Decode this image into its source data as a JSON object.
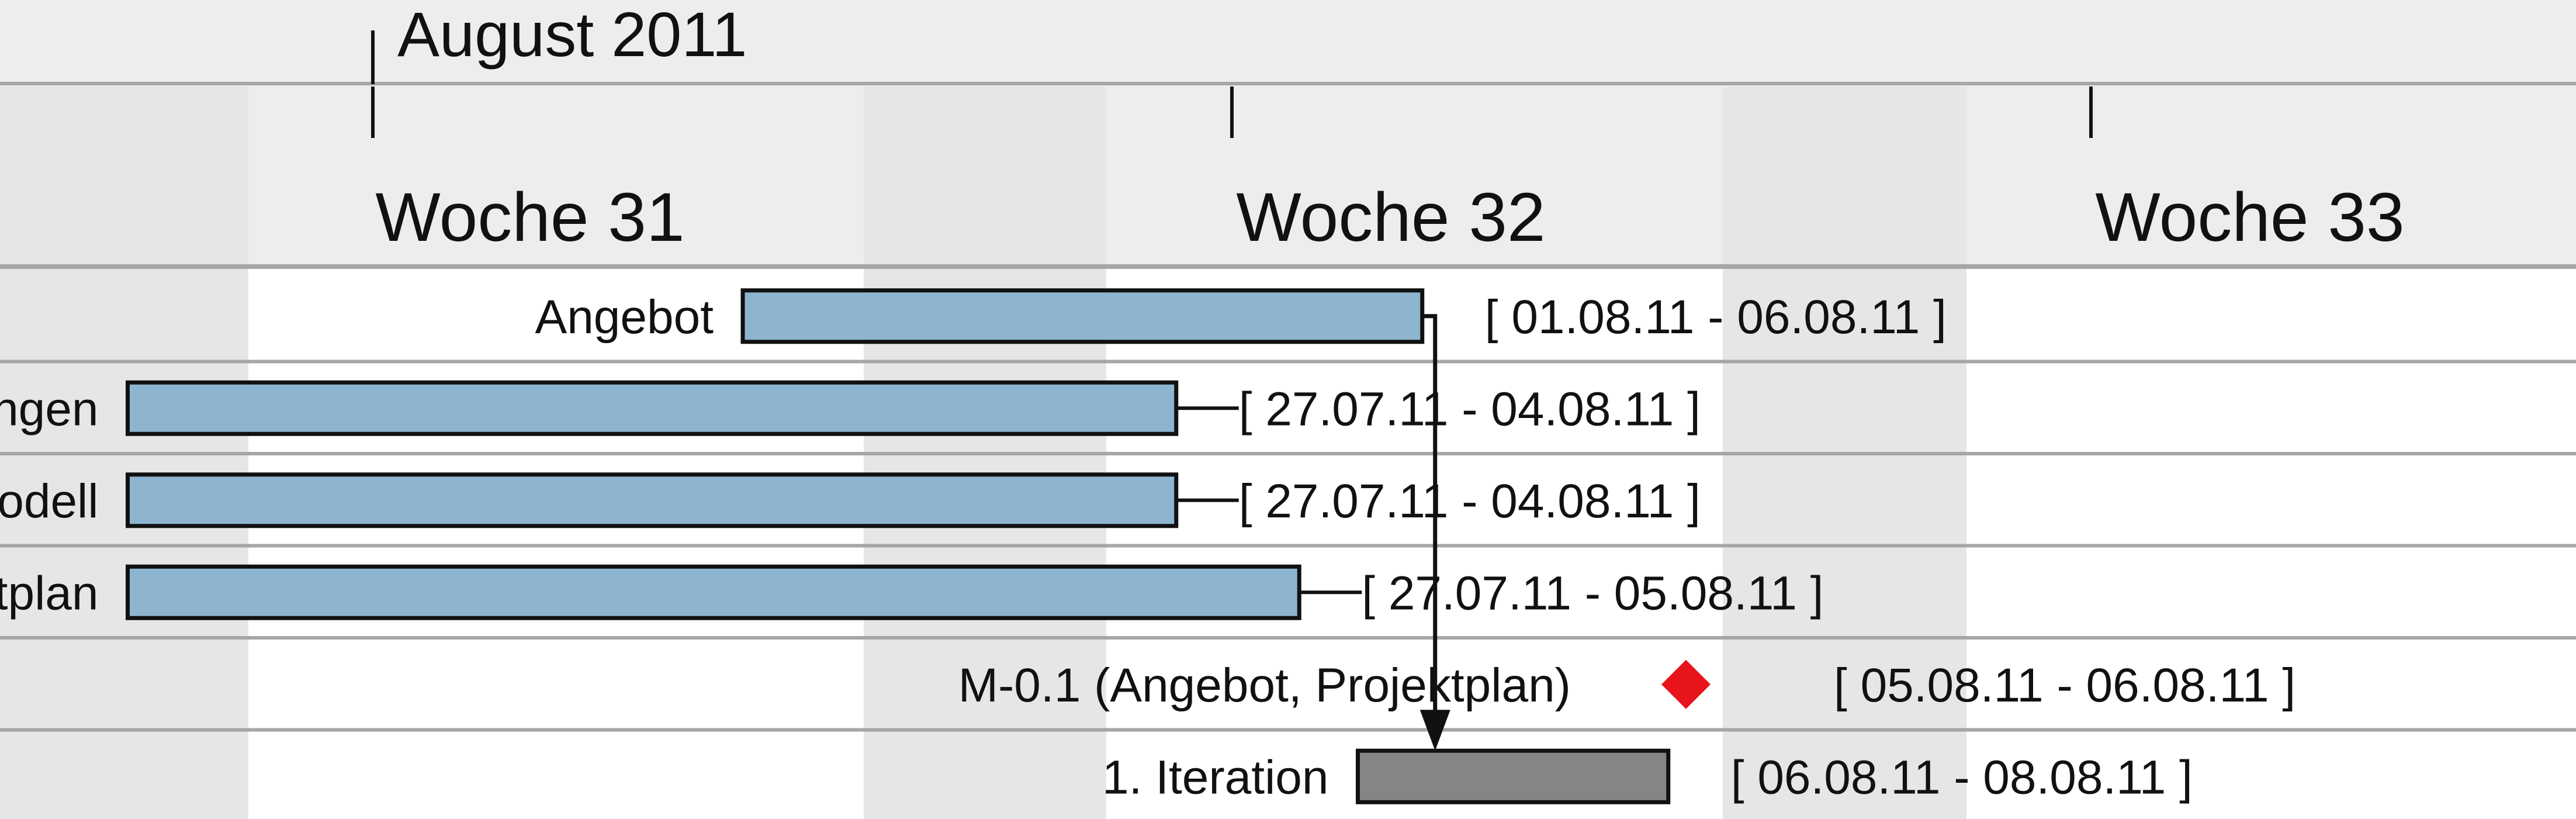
{
  "chart_data": {
    "type": "gantt",
    "month_label": "August 2011",
    "weeks": [
      "Woche 31",
      "Woche 32",
      "Woche 33"
    ],
    "tasks": [
      {
        "name": "Angebot",
        "start": "2011-08-01",
        "end": "2011-08-06",
        "range_label": "[ 01.08.11 - 06.08.11 ]",
        "kind": "task"
      },
      {
        "name": "Anforderungen",
        "start": "2011-07-27",
        "end": "2011-08-04",
        "range_label": "[ 27.07.11 - 04.08.11 ]",
        "kind": "task"
      },
      {
        "name": "Metamodell",
        "start": "2011-07-27",
        "end": "2011-08-04",
        "range_label": "[ 27.07.11 - 04.08.11 ]",
        "kind": "task"
      },
      {
        "name": "Projektplan",
        "start": "2011-07-27",
        "end": "2011-08-05",
        "range_label": "[ 27.07.11 - 05.08.11 ]",
        "kind": "task"
      },
      {
        "name": "M-0.1 (Angebot, Projektplan)",
        "start": "2011-08-05",
        "end": "2011-08-06",
        "range_label": "[ 05.08.11 - 06.08.11 ]",
        "kind": "milestone"
      },
      {
        "name": "1. Iteration",
        "start": "2011-08-06",
        "end": "2011-08-08",
        "range_label": "[ 06.08.11 - 08.08.11 ]",
        "kind": "phase"
      }
    ],
    "dependencies": [
      {
        "from": "Angebot",
        "to": "1. Iteration"
      }
    ],
    "colors": {
      "task_bar": "#8DB5D0",
      "phase_bar": "#858585",
      "milestone": "#E8141C",
      "header_bg": "#EDEDED",
      "weekend_shade": "#E6E6E6",
      "row_line": "#A6A6A6"
    }
  }
}
